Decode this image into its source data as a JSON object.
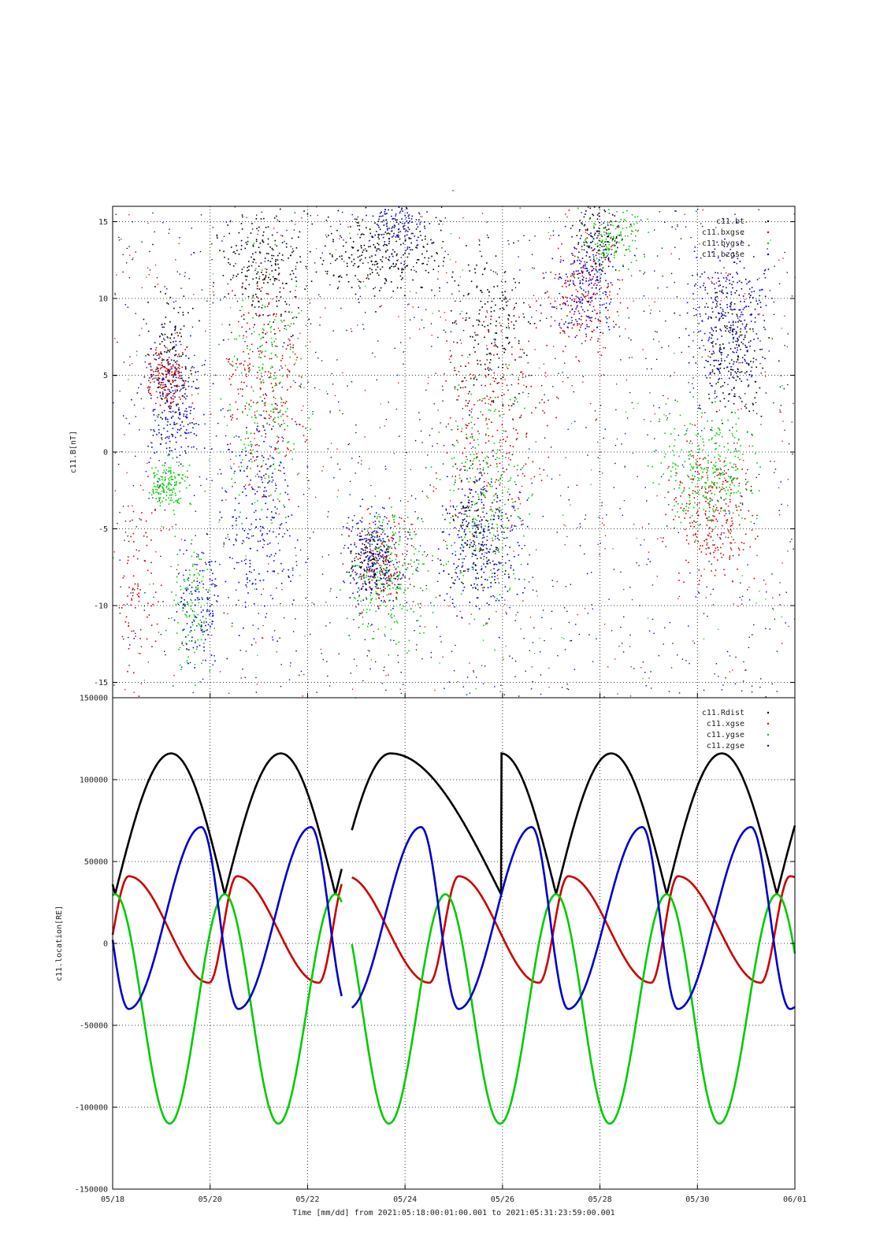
{
  "figure": {
    "title_mark": "-",
    "xlabel": "Time [mm/dd]  from 2021:05:18:00:01:00.001  to  2021:05:31:23:59:00.001",
    "x_tick_labels": [
      "05/18",
      "05/20",
      "05/22",
      "05/24",
      "05/26",
      "05/28",
      "05/30",
      "06/01"
    ]
  },
  "colors": {
    "black": "#000000",
    "red": "#cc0000",
    "green": "#00cc00",
    "blue": "#0000cc"
  },
  "chart_data": [
    {
      "type": "scatter",
      "ylabel": "c11.B[nT]",
      "xlim": [
        "2021-05-18",
        "2021-06-01"
      ],
      "ylim": [
        -16,
        16
      ],
      "y_ticks": [
        15,
        10,
        5,
        0,
        -5,
        -10,
        -15
      ],
      "y_tick_labels": [
        "15",
        "10",
        "5",
        "0",
        "-5",
        "-10",
        "-15"
      ],
      "grid": true,
      "legend_position": "top-right",
      "legend": [
        "c11.bt",
        "c11.bxgse",
        "c11.bygse",
        "c11.bzgse"
      ],
      "series": [
        {
          "name": "c11.bt",
          "color": "#000000",
          "clusters": [
            {
              "day": 1.2,
              "y": 6,
              "width": 0.5,
              "spread": 4,
              "n": 140
            },
            {
              "day": 3.1,
              "y": 12,
              "width": 0.8,
              "spread": 4,
              "n": 240
            },
            {
              "day": 5.5,
              "y": 13,
              "width": 1.2,
              "spread": 3,
              "n": 300
            },
            {
              "day": 5.3,
              "y": -7,
              "width": 0.4,
              "spread": 2,
              "n": 120
            },
            {
              "day": 7.8,
              "y": 8,
              "width": 0.8,
              "spread": 5,
              "n": 180
            },
            {
              "day": 7.4,
              "y": -5,
              "width": 0.6,
              "spread": 4,
              "n": 140
            },
            {
              "day": 12.7,
              "y": 7,
              "width": 0.6,
              "spread": 5,
              "n": 200
            },
            {
              "day": 10.0,
              "y": 14,
              "width": 0.5,
              "spread": 2,
              "n": 120
            }
          ]
        },
        {
          "name": "c11.bxgse",
          "color": "#cc0000",
          "clusters": [
            {
              "day": 1.1,
              "y": 5,
              "width": 0.4,
              "spread": 2,
              "n": 160
            },
            {
              "day": 3.1,
              "y": 5,
              "width": 0.8,
              "spread": 7,
              "n": 200
            },
            {
              "day": 5.5,
              "y": -7,
              "width": 0.6,
              "spread": 3,
              "n": 160
            },
            {
              "day": 7.8,
              "y": 2,
              "width": 1.0,
              "spread": 7,
              "n": 220
            },
            {
              "day": 9.7,
              "y": 10,
              "width": 0.8,
              "spread": 4,
              "n": 180
            },
            {
              "day": 12.3,
              "y": -4,
              "width": 0.8,
              "spread": 4,
              "n": 260
            },
            {
              "day": 0.6,
              "y": -8,
              "width": 0.4,
              "spread": 6,
              "n": 80
            }
          ]
        },
        {
          "name": "c11.bygse",
          "color": "#00cc00",
          "clusters": [
            {
              "day": 1.1,
              "y": -2,
              "width": 0.4,
              "spread": 1.5,
              "n": 160
            },
            {
              "day": 1.6,
              "y": -10,
              "width": 0.4,
              "spread": 4,
              "n": 120
            },
            {
              "day": 3.1,
              "y": 4,
              "width": 0.8,
              "spread": 8,
              "n": 200
            },
            {
              "day": 5.7,
              "y": -8,
              "width": 0.8,
              "spread": 4,
              "n": 220
            },
            {
              "day": 7.6,
              "y": -3,
              "width": 0.8,
              "spread": 7,
              "n": 220
            },
            {
              "day": 10.3,
              "y": 14,
              "width": 0.6,
              "spread": 2,
              "n": 120
            },
            {
              "day": 12.2,
              "y": -1,
              "width": 1.0,
              "spread": 4,
              "n": 300
            }
          ]
        },
        {
          "name": "c11.bzgse",
          "color": "#0000cc",
          "clusters": [
            {
              "day": 1.2,
              "y": 3,
              "width": 0.6,
              "spread": 4,
              "n": 200
            },
            {
              "day": 1.8,
              "y": -10,
              "width": 0.4,
              "spread": 4,
              "n": 120
            },
            {
              "day": 3.0,
              "y": -4,
              "width": 0.8,
              "spread": 7,
              "n": 220
            },
            {
              "day": 5.4,
              "y": -7,
              "width": 0.6,
              "spread": 3,
              "n": 200
            },
            {
              "day": 7.6,
              "y": -6,
              "width": 0.8,
              "spread": 5,
              "n": 240
            },
            {
              "day": 9.7,
              "y": 11,
              "width": 0.6,
              "spread": 3,
              "n": 200
            },
            {
              "day": 12.6,
              "y": 9,
              "width": 0.8,
              "spread": 5,
              "n": 280
            },
            {
              "day": 5.9,
              "y": 15,
              "width": 0.6,
              "spread": 2,
              "n": 120
            }
          ]
        }
      ]
    },
    {
      "type": "line",
      "ylabel": "c11.location[RE]",
      "xlim": [
        "2021-05-18",
        "2021-06-01"
      ],
      "ylim": [
        -150000,
        150000
      ],
      "y_ticks": [
        150000,
        100000,
        50000,
        0,
        -50000,
        -100000,
        -150000
      ],
      "y_tick_labels": [
        "150000",
        "100000",
        "50000",
        "0",
        "-50000",
        "-100000",
        "-150000"
      ],
      "grid": true,
      "legend_position": "top-right",
      "legend": [
        "c11.Rdist",
        "c11.xgse",
        "c11.ygse",
        "c11.zgse"
      ],
      "orbit_period_days": 2.27,
      "data_gap_days": [
        4.7,
        4.9
      ],
      "series": [
        {
          "name": "c11.Rdist",
          "color": "#000000",
          "min": 30000,
          "max": 116000,
          "minima_days": [
            0.05,
            2.3,
            4.57,
            9.1,
            11.37,
            13.63
          ],
          "maxima_days": [
            1.2,
            3.45,
            5.7,
            7.97,
            10.23,
            12.5
          ]
        },
        {
          "name": "c11.xgse",
          "color": "#cc0000",
          "min": -24000,
          "max": 41000,
          "maxima_days": [
            0.33,
            2.55,
            4.8,
            7.1,
            9.35,
            11.6,
            13.9
          ],
          "minima_days": [
            1.98,
            4.23,
            6.5,
            8.75,
            11.05,
            13.3
          ]
        },
        {
          "name": "c11.ygse",
          "color": "#00cc00",
          "min": -110000,
          "max": 30000,
          "maxima_days": [
            0.05,
            2.3,
            4.57,
            6.83,
            9.1,
            11.37,
            13.63
          ],
          "minima_days": [
            1.17,
            3.4,
            5.67,
            7.95,
            10.2,
            12.45
          ]
        },
        {
          "name": "c11.zgse",
          "color": "#0000cc",
          "min": -40000,
          "max": 71000,
          "maxima_days": [
            1.82,
            4.07,
            6.33,
            8.6,
            10.87,
            13.1
          ],
          "minima_days": [
            0.33,
            2.58,
            4.83,
            7.1,
            9.35,
            11.6,
            13.9
          ]
        }
      ]
    }
  ]
}
